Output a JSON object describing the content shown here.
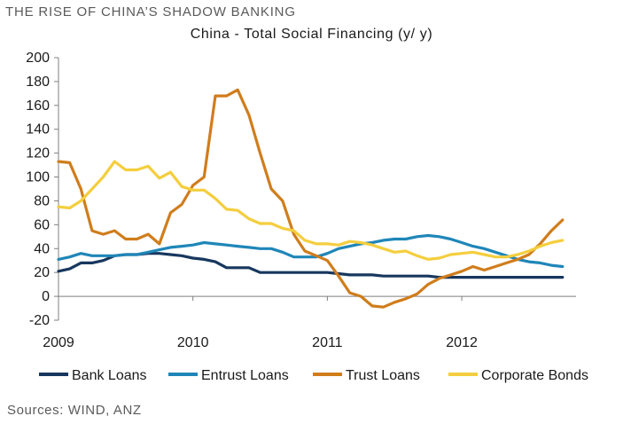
{
  "headline": "THE RISE OF CHINA’S SHADOW BANKING",
  "source": "Sources: WIND, ANZ",
  "chart_data": {
    "type": "line",
    "title": "China - Total Social Financing (y/ y)",
    "xlabel": "",
    "ylabel": "",
    "ylim": [
      -20,
      200
    ],
    "yticks": [
      -20,
      0,
      20,
      40,
      60,
      80,
      100,
      120,
      140,
      160,
      180,
      200
    ],
    "xlim": [
      2009.0,
      2012.85
    ],
    "xticks": [
      {
        "value": 2009,
        "label": "2009"
      },
      {
        "value": 2010,
        "label": "2010"
      },
      {
        "value": 2011,
        "label": "2011"
      },
      {
        "value": 2012,
        "label": "2012"
      }
    ],
    "grid": false,
    "legend_position": "bottom",
    "x": [
      2009.0,
      2009.083,
      2009.167,
      2009.25,
      2009.333,
      2009.417,
      2009.5,
      2009.583,
      2009.667,
      2009.75,
      2009.833,
      2009.917,
      2010.0,
      2010.083,
      2010.167,
      2010.25,
      2010.333,
      2010.417,
      2010.5,
      2010.583,
      2010.667,
      2010.75,
      2010.833,
      2010.917,
      2011.0,
      2011.083,
      2011.167,
      2011.25,
      2011.333,
      2011.417,
      2011.5,
      2011.583,
      2011.667,
      2011.75,
      2011.833,
      2011.917,
      2012.0,
      2012.083,
      2012.167,
      2012.25,
      2012.333,
      2012.417,
      2012.5,
      2012.583,
      2012.667,
      2012.75
    ],
    "series": [
      {
        "name": "Bank Loans",
        "color": "#17375e",
        "values": [
          21,
          23,
          28,
          28,
          30,
          34,
          35,
          35,
          36,
          36,
          35,
          34,
          32,
          31,
          29,
          24,
          24,
          24,
          20,
          20,
          20,
          20,
          20,
          20,
          20,
          19,
          18,
          18,
          18,
          17,
          17,
          17,
          17,
          17,
          16,
          16,
          16,
          16,
          16,
          16,
          16,
          16,
          16,
          16,
          16,
          16
        ]
      },
      {
        "name": "Entrust Loans",
        "color": "#1f86b8",
        "values": [
          31,
          33,
          36,
          34,
          34,
          34,
          35,
          35,
          37,
          39,
          41,
          42,
          43,
          45,
          44,
          43,
          42,
          41,
          40,
          40,
          37,
          33,
          33,
          33,
          36,
          40,
          42,
          44,
          45,
          47,
          48,
          48,
          50,
          51,
          50,
          48,
          45,
          42,
          40,
          37,
          34,
          31,
          29,
          28,
          26,
          25
        ]
      },
      {
        "name": "Trust Loans",
        "color": "#d07d1c",
        "values": [
          113,
          112,
          90,
          55,
          52,
          55,
          48,
          48,
          52,
          44,
          70,
          77,
          93,
          100,
          168,
          168,
          173,
          152,
          120,
          90,
          80,
          52,
          38,
          34,
          30,
          17,
          3,
          0,
          -8,
          -9,
          -5,
          -2,
          2,
          10,
          15,
          18,
          21,
          25,
          22,
          25,
          28,
          31,
          35,
          44,
          55,
          64
        ]
      },
      {
        "name": "Corporate Bonds",
        "color": "#f4ce3e",
        "values": [
          75,
          74,
          80,
          90,
          100,
          113,
          106,
          106,
          109,
          99,
          104,
          92,
          89,
          89,
          82,
          73,
          72,
          65,
          61,
          61,
          57,
          55,
          47,
          44,
          44,
          43,
          46,
          45,
          43,
          40,
          37,
          38,
          34,
          31,
          32,
          35,
          36,
          37,
          35,
          33,
          33,
          35,
          38,
          42,
          45,
          47
        ]
      }
    ]
  }
}
